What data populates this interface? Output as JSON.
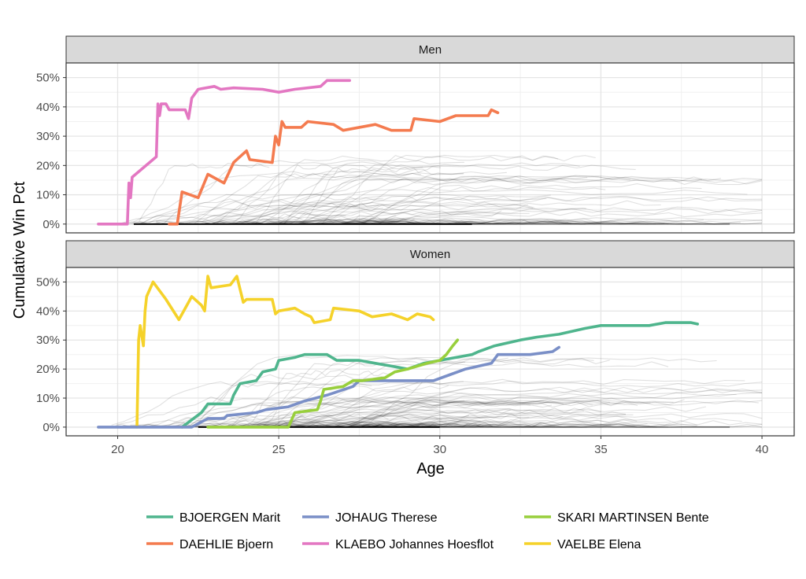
{
  "chart_data": {
    "type": "line",
    "xlabel": "Age",
    "ylabel": "Cumulative Win Pct",
    "xlim": [
      18.4,
      41.0
    ],
    "xticks": [
      20,
      25,
      30,
      35,
      40
    ],
    "panels": [
      {
        "strip": "Men",
        "ylim": [
          -0.03,
          0.55
        ],
        "yticks": [
          0,
          0.1,
          0.2,
          0.3,
          0.4,
          0.5
        ],
        "ytick_labels": [
          "0%",
          "10%",
          "20%",
          "30%",
          "40%",
          "50%"
        ],
        "series": [
          {
            "name": "KLAEBO Johannes Hoesflot",
            "color": "#e377c2",
            "points": [
              [
                19.4,
                0
              ],
              [
                20.3,
                0
              ],
              [
                20.35,
                0.14
              ],
              [
                20.4,
                0.09
              ],
              [
                20.45,
                0.16
              ],
              [
                21.2,
                0.23
              ],
              [
                21.25,
                0.41
              ],
              [
                21.3,
                0.37
              ],
              [
                21.35,
                0.41
              ],
              [
                21.5,
                0.41
              ],
              [
                21.6,
                0.39
              ],
              [
                22.1,
                0.39
              ],
              [
                22.2,
                0.36
              ],
              [
                22.3,
                0.43
              ],
              [
                22.5,
                0.46
              ],
              [
                23.0,
                0.47
              ],
              [
                23.2,
                0.46
              ],
              [
                23.6,
                0.465
              ],
              [
                24.5,
                0.46
              ],
              [
                25.0,
                0.45
              ],
              [
                25.5,
                0.46
              ],
              [
                26.3,
                0.47
              ],
              [
                26.5,
                0.49
              ],
              [
                27.2,
                0.49
              ]
            ]
          },
          {
            "name": "DAEHLIE Bjoern",
            "color": "#f47b4f",
            "points": [
              [
                21.6,
                0
              ],
              [
                21.85,
                0
              ],
              [
                22.0,
                0.11
              ],
              [
                22.5,
                0.09
              ],
              [
                22.8,
                0.17
              ],
              [
                23.3,
                0.14
              ],
              [
                23.6,
                0.21
              ],
              [
                24.0,
                0.25
              ],
              [
                24.1,
                0.22
              ],
              [
                24.8,
                0.21
              ],
              [
                24.9,
                0.3
              ],
              [
                25.0,
                0.27
              ],
              [
                25.1,
                0.35
              ],
              [
                25.2,
                0.33
              ],
              [
                25.7,
                0.33
              ],
              [
                25.9,
                0.35
              ],
              [
                26.7,
                0.34
              ],
              [
                27.0,
                0.32
              ],
              [
                28.0,
                0.34
              ],
              [
                28.5,
                0.32
              ],
              [
                29.1,
                0.32
              ],
              [
                29.2,
                0.36
              ],
              [
                30.0,
                0.35
              ],
              [
                30.5,
                0.37
              ],
              [
                31.5,
                0.37
              ],
              [
                31.6,
                0.39
              ],
              [
                31.8,
                0.38
              ]
            ]
          }
        ]
      },
      {
        "strip": "Women",
        "ylim": [
          -0.03,
          0.55
        ],
        "yticks": [
          0,
          0.1,
          0.2,
          0.3,
          0.4,
          0.5
        ],
        "ytick_labels": [
          "0%",
          "10%",
          "20%",
          "30%",
          "40%",
          "50%"
        ],
        "series": [
          {
            "name": "VAELBE Elena",
            "color": "#f5d22a",
            "points": [
              [
                20.6,
                0
              ],
              [
                20.65,
                0.3
              ],
              [
                20.7,
                0.35
              ],
              [
                20.8,
                0.28
              ],
              [
                20.85,
                0.4
              ],
              [
                20.9,
                0.45
              ],
              [
                21.1,
                0.5
              ],
              [
                21.5,
                0.44
              ],
              [
                21.9,
                0.37
              ],
              [
                22.3,
                0.45
              ],
              [
                22.6,
                0.42
              ],
              [
                22.7,
                0.4
              ],
              [
                22.8,
                0.52
              ],
              [
                22.9,
                0.48
              ],
              [
                23.5,
                0.49
              ],
              [
                23.7,
                0.52
              ],
              [
                23.9,
                0.43
              ],
              [
                24.0,
                0.44
              ],
              [
                24.8,
                0.44
              ],
              [
                24.9,
                0.39
              ],
              [
                25.0,
                0.4
              ],
              [
                25.5,
                0.41
              ],
              [
                25.8,
                0.39
              ],
              [
                26.0,
                0.38
              ],
              [
                26.1,
                0.36
              ],
              [
                26.6,
                0.37
              ],
              [
                26.7,
                0.41
              ],
              [
                27.5,
                0.4
              ],
              [
                27.9,
                0.38
              ],
              [
                28.5,
                0.39
              ],
              [
                29.0,
                0.37
              ],
              [
                29.3,
                0.39
              ],
              [
                29.7,
                0.38
              ],
              [
                29.8,
                0.37
              ]
            ]
          },
          {
            "name": "BJOERGEN Marit",
            "color": "#4fb58d",
            "points": [
              [
                22.0,
                0
              ],
              [
                22.6,
                0.05
              ],
              [
                22.8,
                0.08
              ],
              [
                23.5,
                0.08
              ],
              [
                23.6,
                0.11
              ],
              [
                23.8,
                0.15
              ],
              [
                24.3,
                0.16
              ],
              [
                24.5,
                0.19
              ],
              [
                24.9,
                0.2
              ],
              [
                25.0,
                0.23
              ],
              [
                25.5,
                0.24
              ],
              [
                25.8,
                0.25
              ],
              [
                26.0,
                0.25
              ],
              [
                26.5,
                0.25
              ],
              [
                26.8,
                0.23
              ],
              [
                27.5,
                0.23
              ],
              [
                28.0,
                0.22
              ],
              [
                28.5,
                0.21
              ],
              [
                29.0,
                0.2
              ],
              [
                29.5,
                0.22
              ],
              [
                30.0,
                0.23
              ],
              [
                30.5,
                0.24
              ],
              [
                31.0,
                0.25
              ],
              [
                31.2,
                0.26
              ],
              [
                31.7,
                0.28
              ],
              [
                32.5,
                0.3
              ],
              [
                33.0,
                0.31
              ],
              [
                33.7,
                0.32
              ],
              [
                34.5,
                0.34
              ],
              [
                35.0,
                0.35
              ],
              [
                36.0,
                0.35
              ],
              [
                36.5,
                0.35
              ],
              [
                37.0,
                0.36
              ],
              [
                37.8,
                0.36
              ],
              [
                38.0,
                0.355
              ]
            ]
          },
          {
            "name": "JOHAUG Therese",
            "color": "#7a8fc7",
            "points": [
              [
                19.4,
                0
              ],
              [
                22.3,
                0
              ],
              [
                22.8,
                0.03
              ],
              [
                23.3,
                0.03
              ],
              [
                23.4,
                0.04
              ],
              [
                24.3,
                0.05
              ],
              [
                24.6,
                0.06
              ],
              [
                25.3,
                0.07
              ],
              [
                25.8,
                0.09
              ],
              [
                26.5,
                0.11
              ],
              [
                27.3,
                0.14
              ],
              [
                27.5,
                0.16
              ],
              [
                29.8,
                0.16
              ],
              [
                30.3,
                0.18
              ],
              [
                30.8,
                0.2
              ],
              [
                31.6,
                0.22
              ],
              [
                31.8,
                0.25
              ],
              [
                32.8,
                0.25
              ],
              [
                33.5,
                0.26
              ],
              [
                33.7,
                0.275
              ]
            ]
          },
          {
            "name": "SKARI MARTINSEN Bente",
            "color": "#98cf3c",
            "points": [
              [
                22.8,
                0
              ],
              [
                25.3,
                0
              ],
              [
                25.5,
                0.05
              ],
              [
                26.2,
                0.06
              ],
              [
                26.3,
                0.09
              ],
              [
                26.4,
                0.13
              ],
              [
                27.0,
                0.14
              ],
              [
                27.3,
                0.16
              ],
              [
                27.6,
                0.16
              ],
              [
                28.3,
                0.17
              ],
              [
                28.6,
                0.19
              ],
              [
                29.0,
                0.2
              ],
              [
                29.6,
                0.22
              ],
              [
                30.0,
                0.23
              ],
              [
                30.2,
                0.25
              ],
              [
                30.4,
                0.28
              ],
              [
                30.55,
                0.3
              ]
            ]
          }
        ]
      }
    ],
    "legend": {
      "placement": "bottom",
      "entries": [
        {
          "name": "BJOERGEN Marit",
          "color": "#4fb58d"
        },
        {
          "name": "JOHAUG Therese",
          "color": "#7a8fc7"
        },
        {
          "name": "SKARI MARTINSEN Bente",
          "color": "#98cf3c"
        },
        {
          "name": "DAEHLIE Bjoern",
          "color": "#f47b4f"
        },
        {
          "name": "KLAEBO Johannes Hoesflot",
          "color": "#e377c2"
        },
        {
          "name": "VAELBE Elena",
          "color": "#f5d22a"
        }
      ]
    },
    "background_series_color": "#000000",
    "grid": true
  }
}
